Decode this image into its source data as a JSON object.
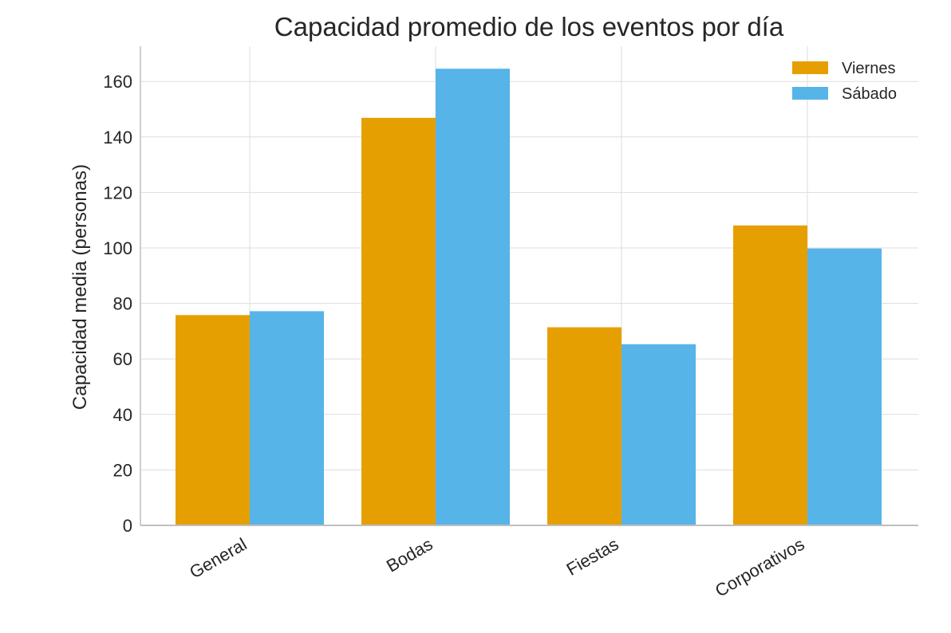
{
  "chart_data": {
    "type": "bar",
    "title": "Capacidad promedio de los eventos por día",
    "xlabel": "",
    "ylabel": "Capacidad media (personas)",
    "categories": [
      "General",
      "Bodas",
      "Fiestas",
      "Corporativos"
    ],
    "series": [
      {
        "name": "Viernes",
        "values": [
          75.8,
          146.9,
          71.4,
          108.1
        ],
        "color": "#E69F00"
      },
      {
        "name": "Sábado",
        "values": [
          77.2,
          164.6,
          65.3,
          99.8
        ],
        "color": "#56B4E9"
      }
    ],
    "ylim": [
      0,
      172.7
    ],
    "yticks": [
      0,
      20,
      40,
      60,
      80,
      100,
      120,
      140,
      160
    ],
    "grid": true,
    "legend_position": "top-right",
    "grid_color": "#DDDDDD",
    "axis_color": "#BFBFBF"
  }
}
